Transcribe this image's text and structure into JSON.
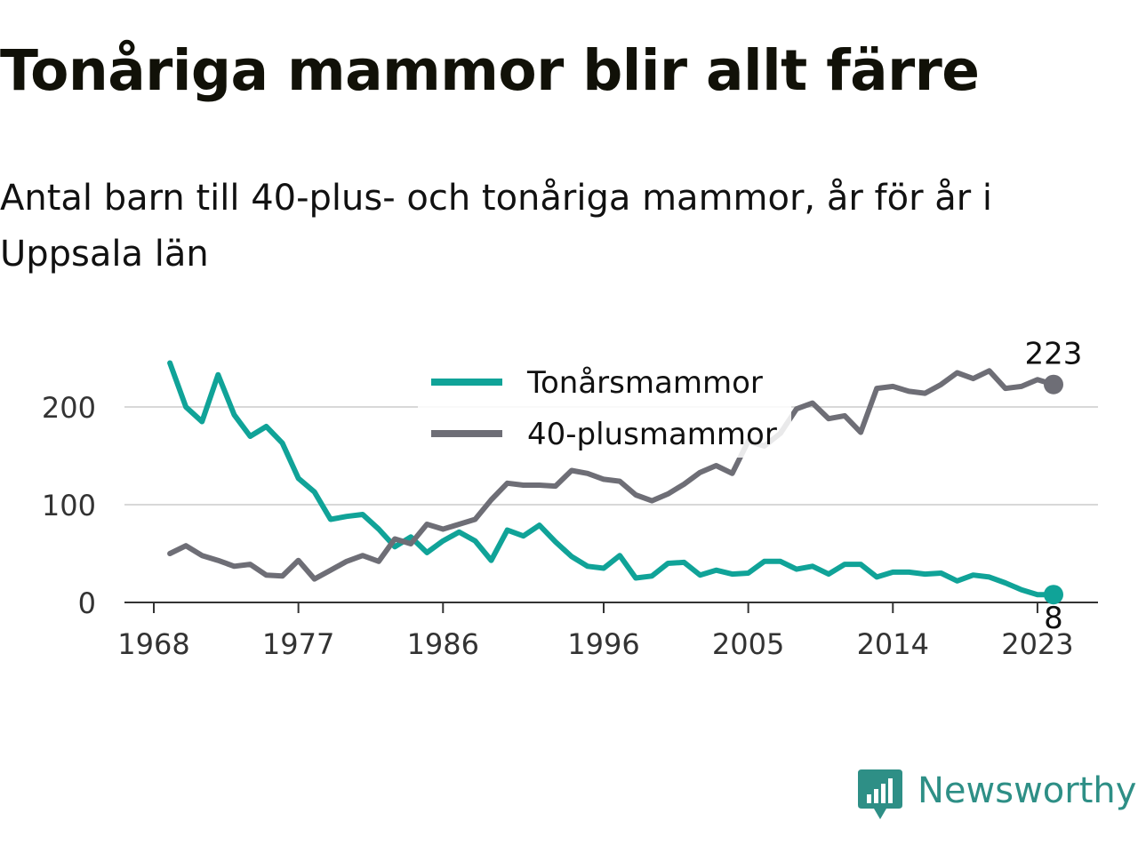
{
  "title": "Tonåriga mammor blir allt färre",
  "subtitle": "Antal barn till 40-plus- och tonåriga mammor, år för år i Uppsala län",
  "brand": {
    "name": "Newsworthy",
    "icon": "newsworthy-logo-icon",
    "color": "#2e8f86"
  },
  "chart_data": {
    "type": "line",
    "title": "Tonåriga mammor blir allt färre",
    "subtitle": "Antal barn till 40-plus- och tonåriga mammor, år för år i Uppsala län",
    "xlabel": "",
    "ylabel": "",
    "xlim": [
      1968,
      2024
    ],
    "ylim": [
      0,
      230
    ],
    "x_ticks": [
      1968,
      1977,
      1986,
      1996,
      2005,
      2014,
      2023
    ],
    "y_ticks": [
      0,
      100,
      200
    ],
    "grid": "horizontal",
    "legend_position": "top-center",
    "x": [
      1969,
      1970,
      1971,
      1972,
      1973,
      1974,
      1975,
      1976,
      1977,
      1978,
      1979,
      1980,
      1981,
      1982,
      1983,
      1984,
      1985,
      1986,
      1987,
      1988,
      1989,
      1990,
      1991,
      1992,
      1993,
      1994,
      1995,
      1996,
      1997,
      1998,
      1999,
      2000,
      2001,
      2002,
      2003,
      2004,
      2005,
      2006,
      2007,
      2008,
      2009,
      2010,
      2011,
      2012,
      2013,
      2014,
      2015,
      2016,
      2017,
      2018,
      2019,
      2020,
      2021,
      2022,
      2023,
      2024
    ],
    "series": [
      {
        "name": "Tonårsmammor",
        "color": "#10a398",
        "values": [
          245,
          200,
          185,
          233,
          192,
          170,
          180,
          163,
          127,
          113,
          85,
          88,
          90,
          75,
          57,
          67,
          51,
          63,
          72,
          63,
          43,
          74,
          68,
          79,
          62,
          47,
          37,
          35,
          48,
          25,
          27,
          40,
          41,
          28,
          33,
          29,
          30,
          42,
          42,
          34,
          37,
          29,
          39,
          39,
          26,
          31,
          31,
          29,
          30,
          22,
          28,
          26,
          20,
          13,
          8,
          8
        ],
        "end_label": "8"
      },
      {
        "name": "40-plusmammor",
        "color": "#6e6e76",
        "values": [
          50,
          58,
          48,
          43,
          37,
          39,
          28,
          27,
          43,
          24,
          33,
          42,
          48,
          42,
          65,
          60,
          80,
          75,
          80,
          85,
          105,
          122,
          120,
          120,
          119,
          135,
          132,
          126,
          124,
          110,
          104,
          111,
          121,
          133,
          140,
          132,
          165,
          160,
          173,
          198,
          204,
          188,
          191,
          174,
          219,
          221,
          216,
          214,
          223,
          235,
          229,
          237,
          219,
          221,
          228,
          223
        ],
        "end_label": "223"
      }
    ]
  }
}
